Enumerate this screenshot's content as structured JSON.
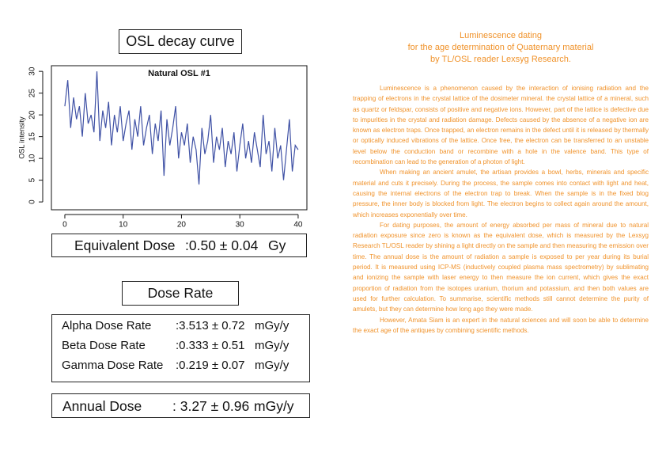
{
  "header": {
    "title": "OSL decay curve"
  },
  "chart_data": {
    "type": "line",
    "title": "Natural OSL #1",
    "ylabel": "OSL intensity",
    "color": "#3f51a5",
    "x": [
      0,
      0.5,
      1,
      1.5,
      2,
      2.5,
      3,
      3.5,
      4,
      4.5,
      5,
      5.5,
      6,
      6.5,
      7,
      7.5,
      8,
      8.5,
      9,
      9.5,
      10,
      10.5,
      11,
      11.5,
      12,
      12.5,
      13,
      13.5,
      14,
      14.5,
      15,
      15.5,
      16,
      16.5,
      17,
      17.5,
      18,
      18.5,
      19,
      19.5,
      20,
      20.5,
      21,
      21.5,
      22,
      22.5,
      23,
      23.5,
      24,
      24.5,
      25,
      25.5,
      26,
      26.5,
      27,
      27.5,
      28,
      28.5,
      29,
      29.5,
      30,
      30.5,
      31,
      31.5,
      32,
      32.5,
      33,
      33.5,
      34,
      34.5,
      35,
      35.5,
      36,
      36.5,
      37,
      37.5,
      38,
      38.5,
      39,
      39.5,
      40
    ],
    "values": [
      22,
      28,
      17,
      24,
      19,
      22,
      15,
      25,
      18,
      20,
      16,
      30,
      14,
      21,
      17,
      23,
      13,
      20,
      16,
      22,
      14,
      18,
      21,
      12,
      19,
      15,
      22,
      13,
      17,
      20,
      11,
      18,
      14,
      21,
      6,
      19,
      13,
      17,
      22,
      10,
      16,
      13,
      18,
      9,
      15,
      12,
      4,
      17,
      11,
      14,
      20,
      9,
      15,
      12,
      17,
      8,
      14,
      11,
      16,
      7,
      13,
      18,
      10,
      14,
      9,
      16,
      12,
      8,
      20,
      11,
      14,
      7,
      17,
      10,
      13,
      5,
      12,
      19,
      7,
      13,
      12
    ],
    "xlim": [
      -2.3,
      41.5
    ],
    "xticks": [
      0,
      10,
      20,
      30,
      40
    ],
    "ylim": [
      -1.8,
      31.3
    ],
    "yticks": [
      0,
      5,
      10,
      15,
      20,
      25,
      30
    ]
  },
  "equivalent_dose": {
    "label": "Equivalent Dose",
    "value": ":0.50 ± 0.04",
    "unit": "Gy"
  },
  "dose_rate": {
    "title": "Dose Rate",
    "rows": [
      [
        "Alpha Dose Rate",
        ":3.513 ± 0.72",
        "mGy/y"
      ],
      [
        "Beta Dose Rate",
        ":0.333 ± 0.51",
        "mGy/y"
      ],
      [
        "Gamma Dose Rate",
        ":0.219 ± 0.07",
        "mGy/y"
      ]
    ]
  },
  "annual_dose": {
    "label": "Annual Dose",
    "value": ": 3.27 ± 0.96",
    "unit": "mGy/y"
  },
  "article": {
    "title": [
      "Luminescence dating",
      "for the age determination of Quaternary material",
      "by TL/OSL reader Lexsyg Research."
    ],
    "paragraphs": [
      "Luminescence is a phenomenon caused by the interaction of ionising radiation and the trapping of electrons in the crystal lattice of the dosimeter mineral. the crystal lattice of a mineral, such as quartz or feldspar, consists of positive and negative ions. However, part of the lattice is defective due to impurities in the crystal and radiation damage. Defects caused by the absence of a negative ion are known as electron traps. Once trapped, an electron remains in the defect until it is released by thermally or optically induced vibrations of the lattice. Once free, the electron can be transferred to an unstable level below the conduction band or recombine with a hole in the valence band. This type of recombination can lead to the generation of a photon of light.",
      "When making an ancient amulet, the artisan provides a bowl, herbs, minerals and specific material and cuts it precisely. During the process, the sample comes into contact with light and heat, causing the internal electrons of the electron trap to break. When the sample is in the fixed blog pressure, the inner body is blocked from light. The electron begins to collect again around the amount, which increases exponentially over time.",
      "For dating purposes, the amount of energy absorbed per mass of mineral due to natural radiation exposure since zero is known as the equivalent dose, which is measured by the Lexsyg Research TL/OSL reader by shining a light directly on the sample and then measuring the emission over time. The annual dose is the amount of radiation a sample is exposed to per year during its burial period. It is measured using ICP-MS (inductively coupled plasma mass spectrometry) by sublimating and ionizing the sample with laser energy to then measure the ion current, which gives the exact proportion of radiation from the isotopes uranium, thorium and potassium, and then both values are used for further calculation. To summarise, scientific methods still cannot determine the purity of amulets, but they can determine how long ago they were made.",
      "However, Amata Siam is an expert in the natural sciences and will soon be able to determine the exact age of the antiques by combining scientific methods."
    ]
  }
}
